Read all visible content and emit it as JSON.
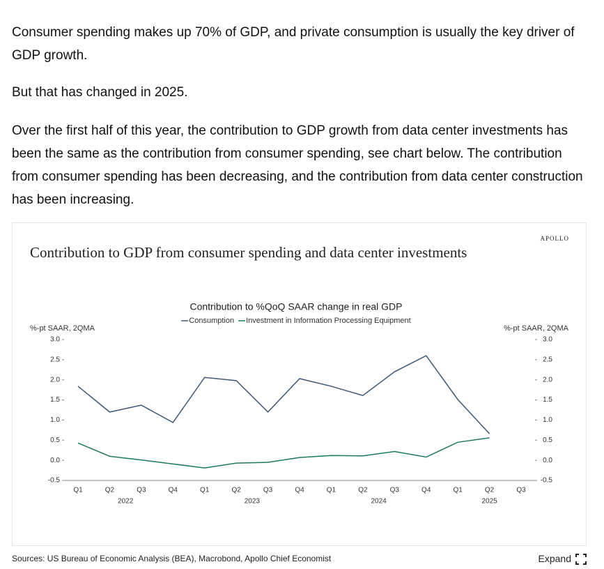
{
  "article": {
    "paragraphs": [
      "Consumer spending makes up 70% of GDP, and private consumption is usually the key driver of GDP growth.",
      "But that has changed in 2025.",
      "Over the first half of this year, the contribution to GDP growth from data center investments has been the same as the contribution from consumer spending, see chart below. The contribution from consumer spending has been decreasing, and the contribution from data center construction has been increasing."
    ]
  },
  "chart": {
    "brand": "APOLLO",
    "title": "Contribution to GDP from consumer spending and data center investments"
  },
  "chart_data": {
    "type": "line",
    "title": "Contribution to %QoQ SAAR change in real GDP",
    "ylabel": "%-pt SAAR, 2QMA",
    "y2label": "%-pt SAAR, 2QMA",
    "categories": [
      "Q1",
      "Q2",
      "Q3",
      "Q4",
      "Q1",
      "Q2",
      "Q3",
      "Q4",
      "Q1",
      "Q2",
      "Q3",
      "Q4",
      "Q1",
      "Q2",
      "Q3"
    ],
    "category_groups": [
      "2022",
      null,
      null,
      null,
      "2023",
      null,
      null,
      null,
      "2024",
      null,
      null,
      null,
      "2025",
      null,
      null
    ],
    "series": [
      {
        "name": "Consumption",
        "color": "#3f5877",
        "values": [
          1.84,
          1.2,
          1.37,
          0.94,
          2.06,
          1.98,
          1.2,
          2.03,
          1.84,
          1.61,
          2.2,
          2.6,
          1.51,
          0.66,
          null
        ]
      },
      {
        "name": "Investment in Information Processing Equipment",
        "color": "#1f7a5a",
        "values": [
          0.43,
          0.1,
          0.01,
          -0.09,
          -0.19,
          -0.07,
          -0.05,
          0.07,
          0.12,
          0.11,
          0.22,
          0.08,
          0.45,
          0.56,
          null
        ]
      }
    ],
    "ylim": [
      -0.5,
      3
    ],
    "yticks": [
      -0.5,
      {
        "value": 0,
        "label": "0.0"
      },
      0.5,
      {
        "value": 1,
        "label": "1.0"
      },
      1.5,
      {
        "value": 2,
        "label": "2.0"
      },
      2.5,
      {
        "value": 3,
        "label": "3.0"
      }
    ],
    "y2lim": [
      -0.5,
      3
    ],
    "y2ticks": [
      -0.5,
      {
        "value": 0,
        "label": "0.0"
      },
      0.5,
      {
        "value": 1,
        "label": "1.0"
      },
      1.5,
      {
        "value": 2,
        "label": "2.0"
      },
      2.5,
      {
        "value": 3,
        "label": "3.0"
      }
    ]
  },
  "footer": {
    "sources": "Sources: US Bureau of Economic Analysis (BEA), Macrobond, Apollo Chief Economist",
    "expand": "Expand"
  }
}
